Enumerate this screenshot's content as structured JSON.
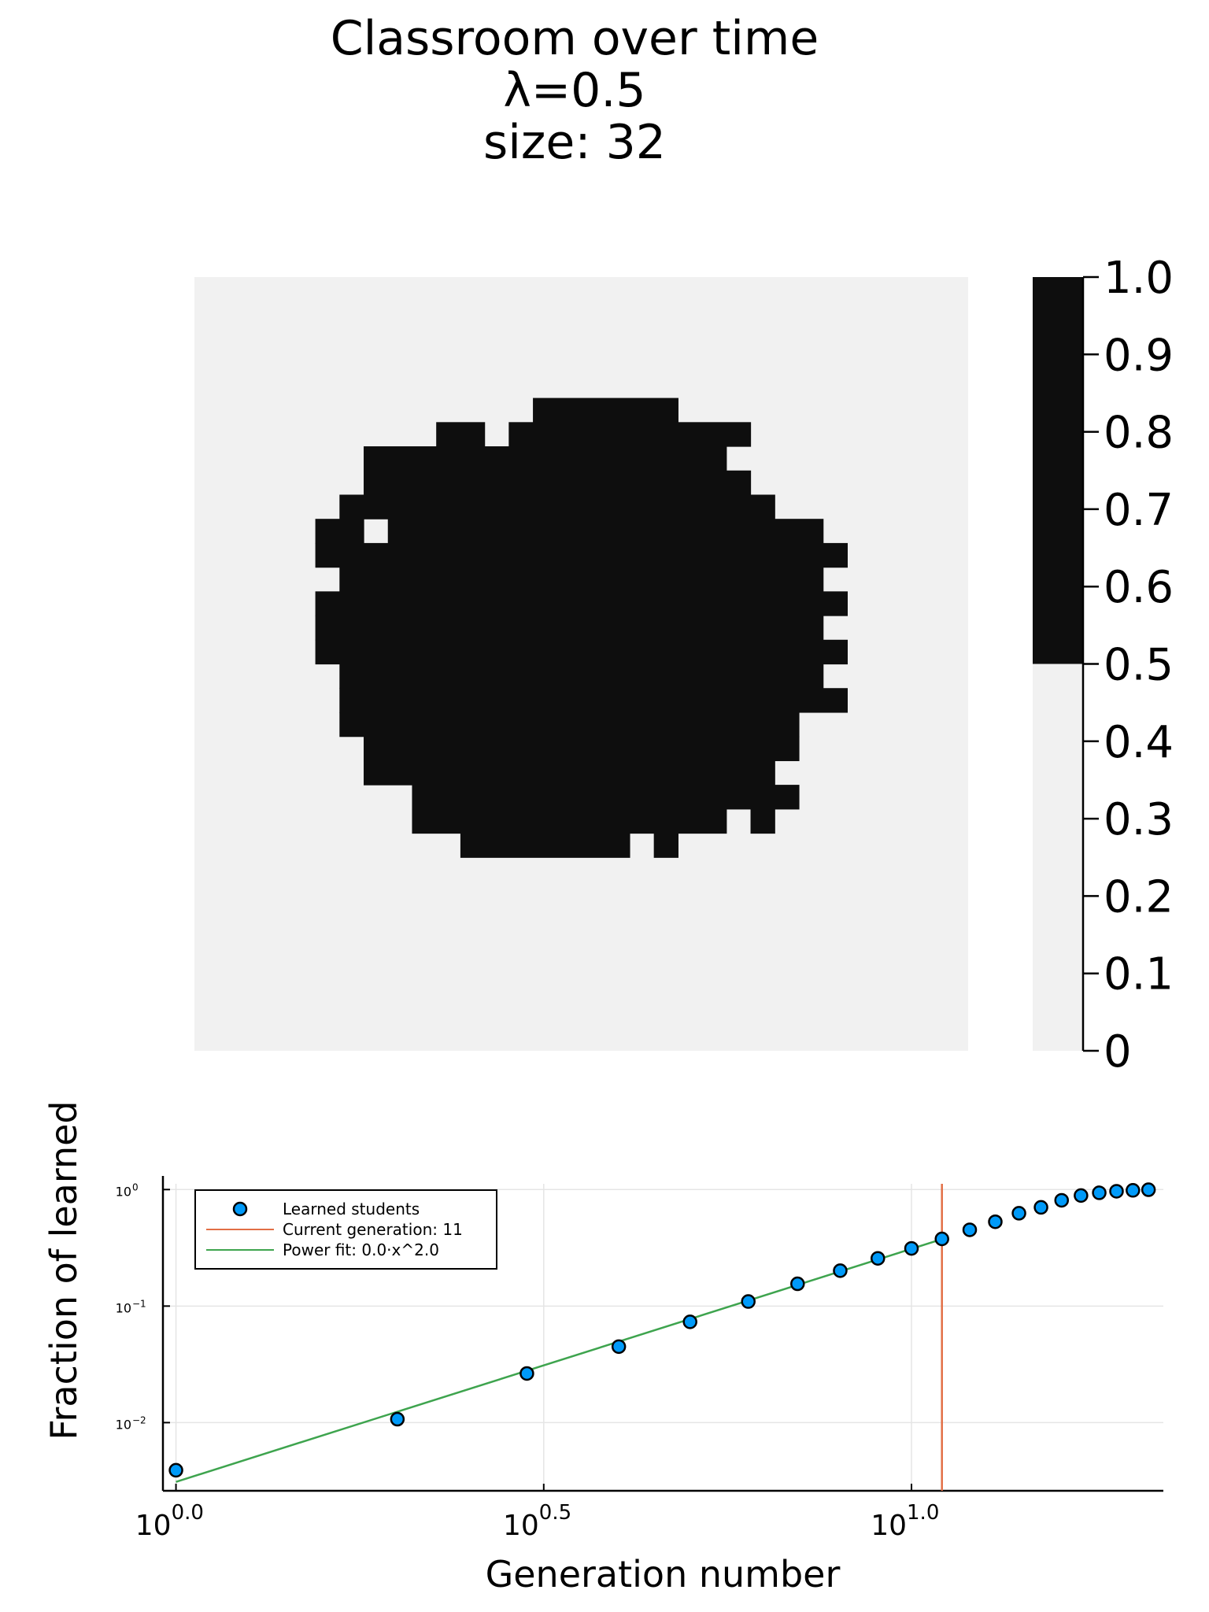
{
  "title_lines": [
    "Classroom over time",
    "λ=0.5",
    "size: 32"
  ],
  "colors": {
    "learned": "#0e0e0e",
    "not_learned": "#f1f1f1",
    "scatter_fill": "#009af9",
    "vline": "#e26f46",
    "fit": "#3ea44e",
    "grid": "#e5e5e5"
  },
  "chart_data": [
    {
      "type": "heatmap",
      "title": "Classroom over time\nλ=0.5\nsize: 32",
      "grid_size": 32,
      "row_order": "top-to-bottom",
      "learned_columns_by_row": [
        [],
        [],
        [],
        [],
        [],
        [
          [
            14,
            19
          ]
        ],
        [
          [
            10,
            11
          ],
          [
            13,
            22
          ]
        ],
        [
          [
            7,
            21
          ]
        ],
        [
          [
            7,
            22
          ]
        ],
        [
          [
            6,
            23
          ]
        ],
        [
          [
            5,
            6
          ],
          [
            8,
            25
          ]
        ],
        [
          [
            5,
            26
          ]
        ],
        [
          [
            6,
            25
          ]
        ],
        [
          [
            5,
            26
          ]
        ],
        [
          [
            5,
            25
          ]
        ],
        [
          [
            5,
            26
          ]
        ],
        [
          [
            6,
            25
          ]
        ],
        [
          [
            6,
            26
          ]
        ],
        [
          [
            6,
            24
          ]
        ],
        [
          [
            7,
            24
          ]
        ],
        [
          [
            7,
            23
          ]
        ],
        [
          [
            9,
            24
          ]
        ],
        [
          [
            9,
            21
          ],
          [
            23,
            23
          ]
        ],
        [
          [
            11,
            17
          ],
          [
            19,
            19
          ]
        ],
        [],
        [],
        [],
        [],
        [],
        [],
        [],
        []
      ],
      "colorbar": {
        "ticks": [
          "1.0",
          "0.9",
          "0.8",
          "0.7",
          "0.6",
          "0.5",
          "0.4",
          "0.3",
          "0.2",
          "0.1",
          "0"
        ],
        "range": [
          0,
          1
        ],
        "threshold": 0.5
      }
    },
    {
      "type": "scatter",
      "xlabel": "Generation number",
      "ylabel": "Fraction of learned",
      "x_scale": "log10",
      "y_scale": "log10",
      "xlim": [
        0.96,
        22
      ],
      "ylim": [
        0.0026,
        1.12
      ],
      "x_ticks": [
        {
          "base": "10",
          "exp": "0.0",
          "value": 1
        },
        {
          "base": "10",
          "exp": "0.5",
          "value": 3.1623
        },
        {
          "base": "10",
          "exp": "1.0",
          "value": 10
        }
      ],
      "y_ticks": [
        {
          "base": "10",
          "exp": "0",
          "value": 1
        },
        {
          "base": "10",
          "exp": "−1",
          "value": 0.1
        },
        {
          "base": "10",
          "exp": "−2",
          "value": 0.01
        }
      ],
      "grid": true,
      "legend_position": "top-left",
      "series": [
        {
          "name": "Learned students",
          "kind": "scatter",
          "x": [
            1,
            2,
            3,
            4,
            5,
            6,
            7,
            8,
            9,
            10,
            11,
            12,
            13,
            14,
            15,
            16,
            17,
            18,
            19,
            20,
            21
          ],
          "y": [
            0.0039,
            0.0107,
            0.0264,
            0.0449,
            0.0732,
            0.1094,
            0.1553,
            0.2012,
            0.2568,
            0.3125,
            0.377,
            0.4512,
            0.5293,
            0.626,
            0.7031,
            0.8086,
            0.8887,
            0.9375,
            0.9668,
            0.9844,
            0.9961
          ]
        },
        {
          "name": "Current generation: 11",
          "kind": "vline",
          "x": 11
        },
        {
          "name": "Power fit: 0.0·x^2.0",
          "kind": "line",
          "x": [
            1,
            11
          ],
          "y": [
            0.0031,
            0.375
          ]
        }
      ]
    }
  ]
}
